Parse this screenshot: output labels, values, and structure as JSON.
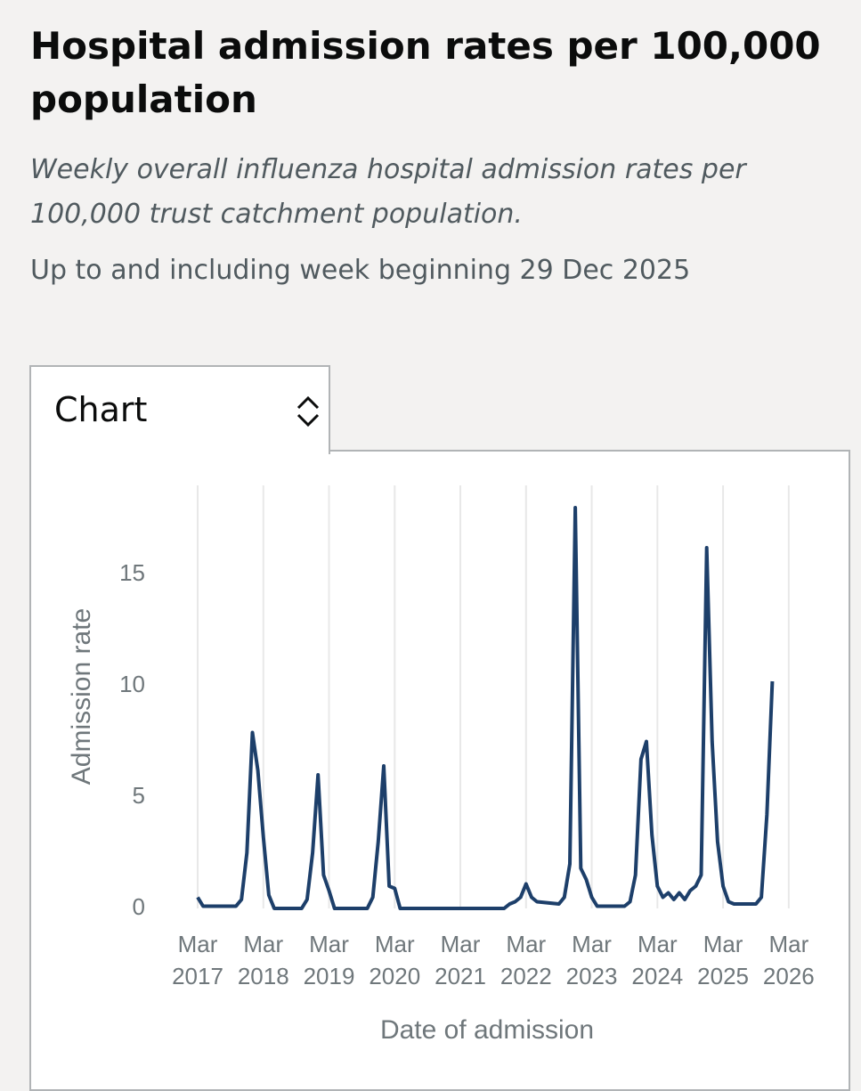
{
  "header": {
    "title": "Hospital admission rates per 100,000 population",
    "subtitle": "Weekly overall influenza hospital admission rates per 100,000 trust catchment population.",
    "updated": "Up to and including week beginning 29 Dec 2025"
  },
  "view_select": "Chart",
  "chart_data": {
    "type": "line",
    "xlabel": "Date of admission",
    "ylabel": "Admission rate",
    "x": [
      "2017-03",
      "2017-04",
      "2017-10",
      "2017-11",
      "2017-12",
      "2018-01",
      "2018-02",
      "2018-03",
      "2018-04",
      "2018-05",
      "2018-10",
      "2018-11",
      "2018-12",
      "2019-01",
      "2019-02",
      "2019-03",
      "2019-04",
      "2019-10",
      "2019-11",
      "2019-12",
      "2020-01",
      "2020-02",
      "2020-03",
      "2020-04",
      "2021-11",
      "2021-12",
      "2022-01",
      "2022-02",
      "2022-03",
      "2022-04",
      "2022-05",
      "2022-09",
      "2022-10",
      "2022-11",
      "2022-12",
      "2023-01",
      "2023-02",
      "2023-03",
      "2023-04",
      "2023-09",
      "2023-10",
      "2023-11",
      "2023-12",
      "2024-01",
      "2024-02",
      "2024-03",
      "2024-04",
      "2024-05",
      "2024-06",
      "2024-07",
      "2024-08",
      "2024-09",
      "2024-10",
      "2024-11",
      "2024-12",
      "2025-01",
      "2025-02",
      "2025-03",
      "2025-04",
      "2025-05",
      "2025-09",
      "2025-10",
      "2025-11",
      "2025-12"
    ],
    "series": [
      {
        "name": "Admission rate",
        "color": "#1d3f6a",
        "values": [
          0.5,
          0.1,
          0.1,
          0.4,
          2.5,
          7.9,
          6.2,
          3.2,
          0.6,
          0,
          0,
          0.4,
          2.5,
          6,
          1.5,
          0.8,
          0,
          0,
          0.5,
          3,
          6.4,
          1,
          0.9,
          0,
          0,
          0.2,
          0.3,
          0.5,
          1.1,
          0.5,
          0.3,
          0.2,
          0.5,
          2,
          18,
          1.8,
          1.3,
          0.5,
          0.1,
          0.1,
          0.3,
          1.5,
          6.7,
          7.5,
          3.3,
          1,
          0.5,
          0.7,
          0.4,
          0.7,
          0.4,
          0.8,
          1,
          1.5,
          16.2,
          7.5,
          3,
          1,
          0.3,
          0.2,
          0.2,
          0.5,
          4.2,
          10.2
        ]
      }
    ],
    "xlim": [
      "2017-01",
      "2026-04"
    ],
    "xticks": [
      {
        "value": "2017-03",
        "label": "Mar 2017"
      },
      {
        "value": "2018-03",
        "label": "Mar 2018"
      },
      {
        "value": "2019-03",
        "label": "Mar 2019"
      },
      {
        "value": "2020-03",
        "label": "Mar 2020"
      },
      {
        "value": "2021-03",
        "label": "Mar 2021"
      },
      {
        "value": "2022-03",
        "label": "Mar 2022"
      },
      {
        "value": "2023-03",
        "label": "Mar 2023"
      },
      {
        "value": "2024-03",
        "label": "Mar 2024"
      },
      {
        "value": "2025-03",
        "label": "Mar 2025"
      },
      {
        "value": "2026-03",
        "label": "Mar 2026"
      }
    ],
    "ylim": [
      0,
      19
    ],
    "yticks": [
      0,
      5,
      10,
      15
    ],
    "grid": "x"
  }
}
